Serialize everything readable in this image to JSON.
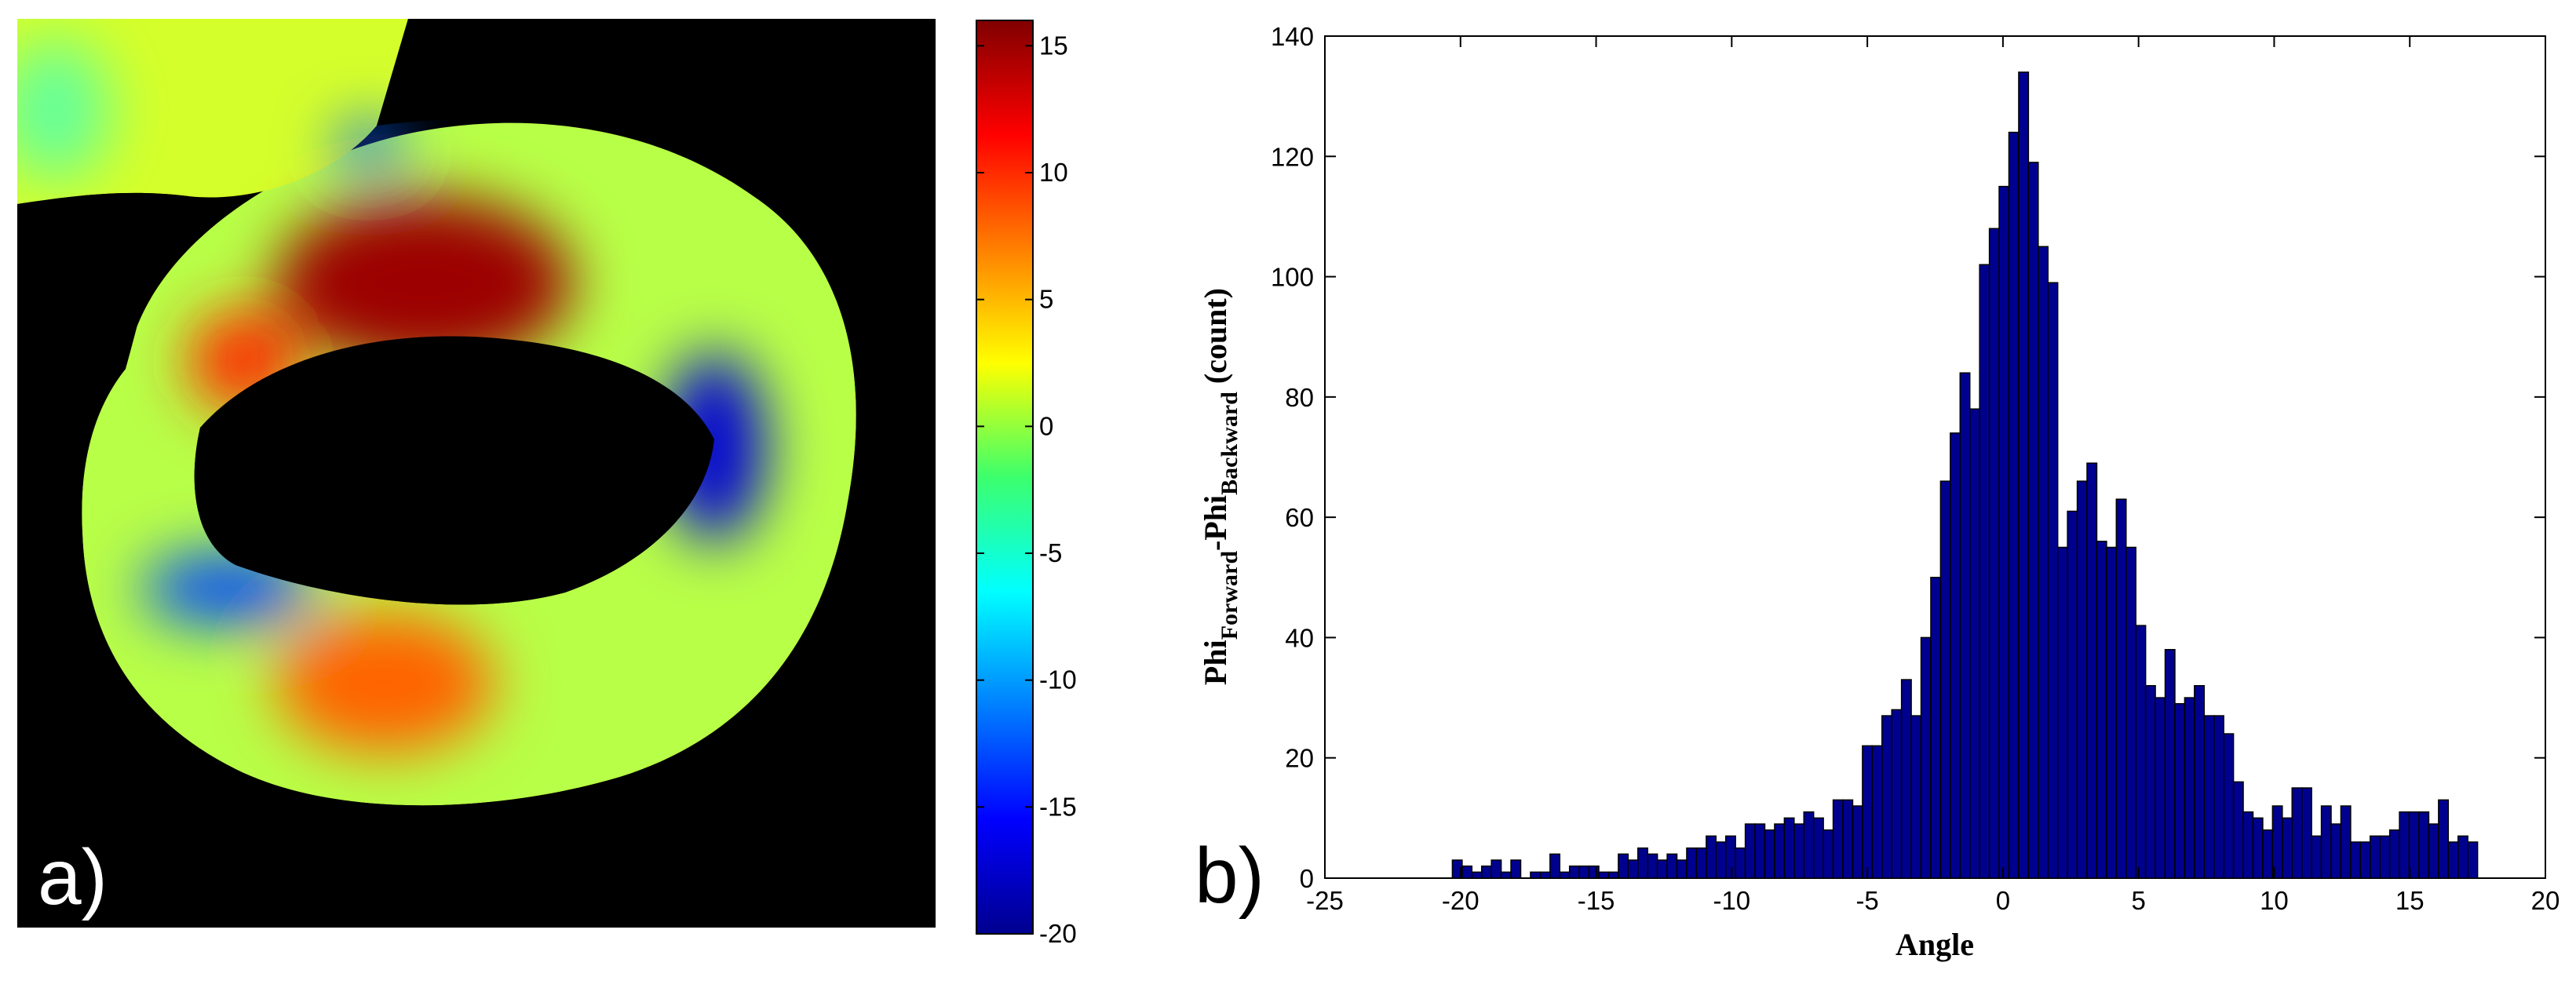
{
  "chart_data": [
    {
      "type": "heatmap",
      "panel_label": "a)",
      "title": "",
      "xlabel": "",
      "ylabel": "",
      "colorbar": {
        "range": [
          -20,
          16
        ],
        "ticks": [
          15,
          10,
          5,
          0,
          -5,
          -10,
          -15,
          -20
        ],
        "colormap": "jet"
      },
      "background_color": "#000000",
      "regions": [
        {
          "name": "upper-left blob",
          "value": 1
        },
        {
          "name": "top-left cyan patch",
          "value": -3
        },
        {
          "name": "upper-right blue spot",
          "value": -12
        },
        {
          "name": "top-center hot band",
          "value": 15
        },
        {
          "name": "left orange patch",
          "value": 10
        },
        {
          "name": "right blue arc",
          "value": -17
        },
        {
          "name": "left blue arc",
          "value": -13
        },
        {
          "name": "bottom orange patch",
          "value": 8
        },
        {
          "name": "ring background",
          "value": 0
        }
      ]
    },
    {
      "type": "bar",
      "panel_label": "b)",
      "title": "",
      "xlabel": "Angle",
      "ylabel": {
        "base1": "Phi",
        "sub1": "Forward",
        "mid": "-Phi",
        "sub2": "Backward",
        "tail": " (count)"
      },
      "xlim": [
        -25,
        20
      ],
      "ylim": [
        0,
        140
      ],
      "xticks": [
        -25,
        -20,
        -15,
        -10,
        -5,
        0,
        5,
        10,
        15,
        20
      ],
      "yticks": [
        0,
        20,
        40,
        60,
        80,
        100,
        120,
        140
      ],
      "bar_color": "#00008f",
      "bin_width": 0.36,
      "bin_start": -20.3,
      "values": [
        3,
        2,
        1,
        2,
        3,
        1,
        3,
        0,
        1,
        1,
        4,
        1,
        2,
        2,
        2,
        1,
        1,
        4,
        3,
        5,
        4,
        3,
        4,
        3,
        5,
        5,
        7,
        6,
        7,
        5,
        9,
        9,
        8,
        9,
        10,
        9,
        11,
        10,
        8,
        13,
        13,
        12,
        22,
        22,
        27,
        28,
        33,
        27,
        40,
        50,
        66,
        74,
        84,
        78,
        102,
        108,
        115,
        124,
        134,
        119,
        105,
        99,
        55,
        61,
        66,
        69,
        56,
        55,
        63,
        55,
        42,
        32,
        30,
        38,
        29,
        30,
        32,
        27,
        27,
        24,
        16,
        11,
        10,
        8,
        12,
        10,
        15,
        15,
        7,
        12,
        9,
        12,
        6,
        6,
        7,
        7,
        8,
        11,
        11,
        11,
        9,
        13,
        6,
        7,
        6
      ]
    }
  ]
}
